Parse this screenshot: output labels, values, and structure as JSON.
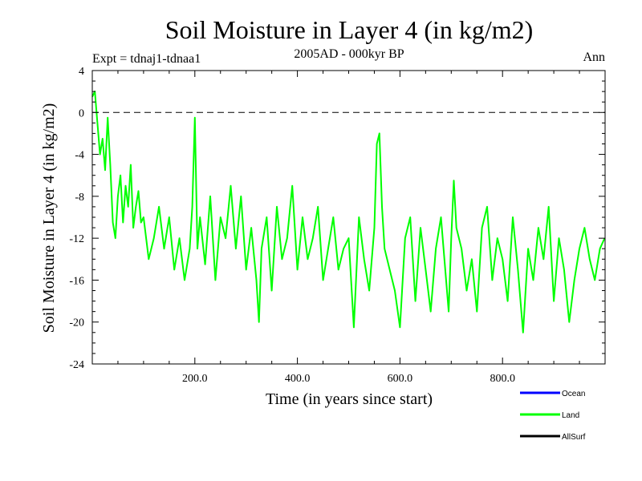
{
  "chart_data": {
    "type": "line",
    "title": "Soil Moisture in Layer 4 (in kg/m2)",
    "subtitle": "2005AD - 000kyr BP",
    "experiment": "Expt = tdnaj1-tdnaa1",
    "season": "Ann",
    "xlabel": "Time (in years since start)",
    "ylabel": "Soil Moisture in Layer 4 (in kg/m2)",
    "xlim": [
      0,
      1000
    ],
    "ylim": [
      -24,
      4
    ],
    "x_ticks": [
      200,
      400,
      600,
      800
    ],
    "x_tick_labels": [
      "200.0",
      "400.0",
      "600.0",
      "800.0"
    ],
    "y_ticks": [
      4,
      0,
      -4,
      -8,
      -12,
      -16,
      -20,
      -24
    ],
    "y_tick_labels": [
      "4",
      "0",
      "-4",
      "-8",
      "-12",
      "-16",
      "-20",
      "-24"
    ],
    "reference_line": {
      "y": 0,
      "style": "dashed"
    },
    "legend": [
      {
        "name": "Ocean",
        "color": "#0000ff"
      },
      {
        "name": "Land",
        "color": "#00ff00"
      },
      {
        "name": "AllSurf",
        "color": "#000000"
      }
    ],
    "series": [
      {
        "name": "Land",
        "color": "#00ff00",
        "x": [
          0,
          5,
          10,
          15,
          20,
          25,
          30,
          35,
          40,
          45,
          50,
          55,
          60,
          65,
          70,
          75,
          80,
          85,
          90,
          95,
          100,
          110,
          120,
          130,
          140,
          150,
          160,
          170,
          180,
          190,
          195,
          200,
          205,
          210,
          220,
          230,
          240,
          250,
          260,
          270,
          280,
          290,
          300,
          310,
          320,
          325,
          330,
          340,
          350,
          360,
          370,
          380,
          390,
          400,
          410,
          420,
          430,
          440,
          450,
          460,
          470,
          480,
          490,
          500,
          510,
          520,
          530,
          540,
          550,
          555,
          560,
          565,
          570,
          580,
          590,
          600,
          610,
          620,
          630,
          640,
          650,
          660,
          670,
          680,
          690,
          695,
          700,
          705,
          710,
          720,
          730,
          740,
          750,
          760,
          770,
          780,
          790,
          800,
          810,
          820,
          830,
          840,
          850,
          860,
          870,
          880,
          890,
          900,
          910,
          920,
          930,
          940,
          950,
          960,
          970,
          980,
          990,
          999
        ],
        "y": [
          1.5,
          2,
          -1,
          -4,
          -2.5,
          -5.5,
          -0.5,
          -5,
          -10.5,
          -12,
          -8,
          -6,
          -10.5,
          -7,
          -9,
          -5,
          -11,
          -9,
          -7.5,
          -10.5,
          -10,
          -14,
          -12,
          -9,
          -13,
          -10,
          -15,
          -12,
          -16,
          -13,
          -9,
          -0.5,
          -13,
          -10,
          -14.5,
          -8,
          -16,
          -10,
          -12,
          -7,
          -13,
          -8,
          -15,
          -11,
          -16,
          -20,
          -13,
          -10,
          -17,
          -9,
          -14,
          -12,
          -7,
          -15,
          -10,
          -14,
          -12,
          -9,
          -16,
          -13,
          -10,
          -15,
          -13,
          -12,
          -20.5,
          -10,
          -14,
          -17,
          -11,
          -3,
          -2,
          -9,
          -13,
          -15,
          -17,
          -20.5,
          -12,
          -10,
          -18,
          -11,
          -15,
          -19,
          -13,
          -10,
          -16,
          -19,
          -12,
          -6.5,
          -11,
          -13,
          -17,
          -14,
          -19,
          -11,
          -9,
          -16,
          -12,
          -14,
          -18,
          -10,
          -15,
          -21,
          -13,
          -16,
          -11,
          -14,
          -9,
          -18,
          -12,
          -15,
          -20,
          -16,
          -13,
          -11,
          -14,
          -16,
          -13,
          -12
        ]
      }
    ]
  }
}
